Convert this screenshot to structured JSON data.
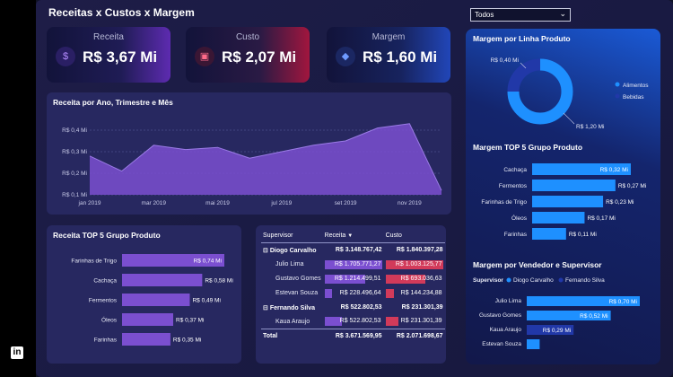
{
  "header": {
    "title": "Receitas x Custos x Margem",
    "filter_value": "Todos"
  },
  "kpis": [
    {
      "label": "Receita",
      "value": "R$ 3,67 Mi",
      "icon": "money-bag-icon",
      "color": "#7b3fd6"
    },
    {
      "label": "Custo",
      "value": "R$ 2,07 Mi",
      "icon": "cost-icon",
      "color": "#d22d55"
    },
    {
      "label": "Margem",
      "value": "R$ 1,60 Mi",
      "icon": "margin-icon",
      "color": "#2f5ed8"
    }
  ],
  "line_panel": {
    "title": "Receita por Ano, Trimestre e Mês",
    "chart_data": {
      "type": "area",
      "x": [
        "jan 2019",
        "fev 2019",
        "mar 2019",
        "abr 2019",
        "mai 2019",
        "jun 2019",
        "jul 2019",
        "ago 2019",
        "set 2019",
        "out 2019",
        "nov 2019",
        "dez 2019"
      ],
      "values": [
        0.28,
        0.21,
        0.33,
        0.31,
        0.32,
        0.27,
        0.3,
        0.33,
        0.35,
        0.41,
        0.43,
        0.12
      ],
      "x_tick_labels": [
        "jan 2019",
        "mar 2019",
        "mai 2019",
        "jul 2019",
        "set 2019",
        "nov 2019"
      ],
      "y_tick_labels": [
        "R$ 0,1 Mi",
        "R$ 0,2 Mi",
        "R$ 0,3 Mi",
        "R$ 0,4 Mi"
      ],
      "ylim": [
        0.1,
        0.45
      ],
      "grid": true,
      "color": "#7b4fd0"
    }
  },
  "top5_receita": {
    "title": "Receita TOP 5 Grupo Produto",
    "chart_data": {
      "type": "bar",
      "orientation": "horizontal",
      "categories": [
        "Farinhas de Trigo",
        "Cachaça",
        "Fermentos",
        "Óleos",
        "Farinhas"
      ],
      "values": [
        0.74,
        0.58,
        0.49,
        0.37,
        0.35
      ],
      "value_labels": [
        "R$ 0,74 Mi",
        "R$ 0,58 Mi",
        "R$ 0,49 Mi",
        "R$ 0,37 Mi",
        "R$ 0,35 Mi"
      ],
      "color": "#7b4fd0"
    }
  },
  "matrix": {
    "headers": [
      "Supervisor",
      "Receita",
      "Custo"
    ],
    "rows": [
      {
        "kind": "grp",
        "name": "Diogo Carvalho",
        "receita": "R$ 3.148.767,42",
        "custo": "R$ 1.840.397,28"
      },
      {
        "kind": "row",
        "name": "Julio Lima",
        "receita": "R$ 1.705.771,27",
        "custo": "R$ 1.003.125,77",
        "rfrac": 1.0,
        "cfrac": 1.0
      },
      {
        "kind": "row",
        "name": "Gustavo Gomes",
        "receita": "R$ 1.214.499,51",
        "custo": "R$ 693.036,63",
        "rfrac": 0.71,
        "cfrac": 0.69
      },
      {
        "kind": "row",
        "name": "Estevan Souza",
        "receita": "R$ 228.496,64",
        "custo": "R$ 144.234,88",
        "rfrac": 0.13,
        "cfrac": 0.14
      },
      {
        "kind": "grp",
        "name": "Fernando Silva",
        "receita": "R$ 522.802,53",
        "custo": "R$ 231.301,39"
      },
      {
        "kind": "row",
        "name": "Kaua Araujo",
        "receita": "R$ 522.802,53",
        "custo": "R$ 231.301,39",
        "rfrac": 0.31,
        "cfrac": 0.23
      },
      {
        "kind": "tot",
        "name": "Total",
        "receita": "R$ 3.671.569,95",
        "custo": "R$ 2.071.698,67"
      }
    ],
    "colors": {
      "receita_bar": "#7b4fd0",
      "custo_bar": "#d23a5a"
    }
  },
  "right_panel": {
    "donut": {
      "title": "Margem por Linha Produto",
      "chart_data": {
        "type": "pie",
        "categories": [
          "Alimentos",
          "Bebidas"
        ],
        "values": [
          1.2,
          0.4
        ],
        "value_labels": [
          "R$ 1,20 Mi",
          "R$ 0,40 Mi"
        ],
        "colors": [
          "#1e90ff",
          "#2138a8"
        ]
      }
    },
    "top5_margem": {
      "title": "Margem TOP 5 Grupo Produto",
      "chart_data": {
        "type": "bar",
        "orientation": "horizontal",
        "categories": [
          "Cachaça",
          "Fermentos",
          "Farinhas de Trigo",
          "Óleos",
          "Farinhas"
        ],
        "values": [
          0.32,
          0.27,
          0.23,
          0.17,
          0.11
        ],
        "value_labels": [
          "R$ 0,32 Mi",
          "R$ 0,27 Mi",
          "R$ 0,23 Mi",
          "R$ 0,17 Mi",
          "R$ 0,11 Mi"
        ],
        "color": "#1e90ff"
      }
    },
    "vendedor": {
      "title": "Margem por Vendedor e Supervisor",
      "legend_title": "Supervisor",
      "chart_data": {
        "type": "bar",
        "orientation": "horizontal",
        "categories": [
          "Julio Lima",
          "Gustavo Gomes",
          "Kaua Araujo",
          "Estevan Souza"
        ],
        "series": [
          {
            "name": "Diogo Carvalho",
            "color": "#1e90ff"
          },
          {
            "name": "Fernando Silva",
            "color": "#2138a8"
          }
        ],
        "values": [
          0.7,
          0.52,
          0.29,
          0.08
        ],
        "bar_series": [
          0,
          0,
          1,
          0
        ],
        "value_labels": [
          "R$ 0,70 Mi",
          "R$ 0,52 Mi",
          "R$ 0,29 Mi",
          ""
        ]
      }
    }
  }
}
